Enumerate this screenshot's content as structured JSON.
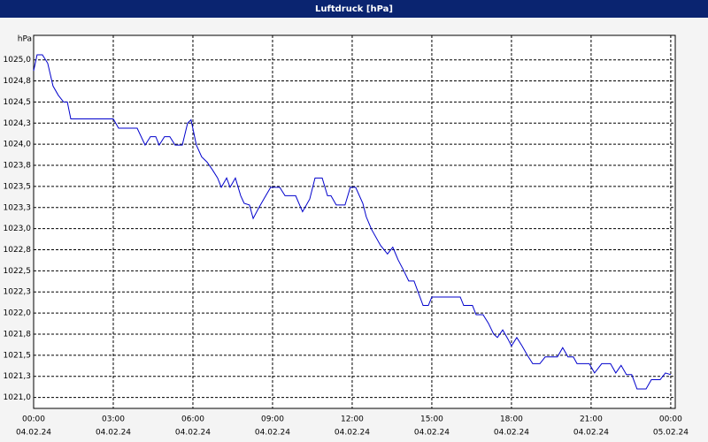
{
  "chart_data": {
    "type": "line",
    "title": "Luftdruck [hPa]",
    "ylabel": "hPa",
    "x": [
      0,
      0.13,
      0.33,
      0.53,
      0.73,
      0.93,
      1.13,
      1.27,
      1.4,
      1.73,
      3,
      3.2,
      3.9,
      4.2,
      4.4,
      4.6,
      4.73,
      4.93,
      5.13,
      5.33,
      5.6,
      5.8,
      5.93,
      6.13,
      6.33,
      6.53,
      6.73,
      6.93,
      7.07,
      7.27,
      7.4,
      7.6,
      7.8,
      7.93,
      8.13,
      8.27,
      8.47,
      8.67,
      8.93,
      9.27,
      9.47,
      9.87,
      10.13,
      10.4,
      10.6,
      10.87,
      11.07,
      11.2,
      11.4,
      11.73,
      11.93,
      12.13,
      12.4,
      12.53,
      12.73,
      13.07,
      13.33,
      13.53,
      13.73,
      13.93,
      14.13,
      14.33,
      14.47,
      14.67,
      14.87,
      15,
      16.07,
      16.2,
      16.53,
      16.67,
      16.93,
      17.13,
      17.33,
      17.47,
      17.67,
      17.87,
      18,
      18.2,
      18.4,
      18.6,
      18.8,
      19.07,
      19.27,
      19.73,
      19.93,
      20.13,
      20.33,
      20.47,
      20.93,
      21.13,
      21.4,
      21.73,
      21.93,
      22.13,
      22.33,
      22.53,
      22.73,
      23.07,
      23.27,
      23.6,
      23.8,
      24
    ],
    "values": [
      1024.87,
      1025.06,
      1025.06,
      1024.96,
      1024.69,
      1024.58,
      1024.5,
      1024.5,
      1024.3,
      1024.3,
      1024.3,
      1024.19,
      1024.19,
      1023.99,
      1024.09,
      1024.09,
      1023.99,
      1024.09,
      1024.09,
      1023.99,
      1023.99,
      1024.25,
      1024.29,
      1023.99,
      1023.85,
      1023.79,
      1023.7,
      1023.6,
      1023.49,
      1023.6,
      1023.49,
      1023.6,
      1023.39,
      1023.3,
      1023.28,
      1023.12,
      1023.24,
      1023.35,
      1023.49,
      1023.49,
      1023.39,
      1023.39,
      1023.2,
      1023.35,
      1023.6,
      1023.6,
      1023.39,
      1023.39,
      1023.28,
      1023.28,
      1023.49,
      1023.49,
      1023.3,
      1023.14,
      1022.99,
      1022.8,
      1022.7,
      1022.78,
      1022.63,
      1022.51,
      1022.38,
      1022.38,
      1022.26,
      1022.09,
      1022.09,
      1022.19,
      1022.19,
      1022.09,
      1022.09,
      1021.98,
      1021.98,
      1021.88,
      1021.75,
      1021.71,
      1021.8,
      1021.69,
      1021.61,
      1021.71,
      1021.61,
      1021.5,
      1021.4,
      1021.4,
      1021.48,
      1021.48,
      1021.59,
      1021.48,
      1021.48,
      1021.4,
      1021.4,
      1021.29,
      1021.4,
      1021.4,
      1021.29,
      1021.38,
      1021.27,
      1021.27,
      1021.1,
      1021.1,
      1021.21,
      1021.21,
      1021.29,
      1021.27
    ],
    "color": "#0000cc",
    "xlim": [
      0,
      24.17
    ],
    "xticks": [
      {
        "value": 0,
        "label": "00:00"
      },
      {
        "value": 3,
        "label": "03:00"
      },
      {
        "value": 6,
        "label": "06:00"
      },
      {
        "value": 9,
        "label": "09:00"
      },
      {
        "value": 12,
        "label": "12:00"
      },
      {
        "value": 15,
        "label": "15:00"
      },
      {
        "value": 18,
        "label": "18:00"
      },
      {
        "value": 21,
        "label": "21:00"
      },
      {
        "value": 24,
        "label": "00:00"
      }
    ],
    "xtick_dates": [
      "04.02.24",
      "04.02.24",
      "04.02.24",
      "04.02.24",
      "04.02.24",
      "04.02.24",
      "04.02.24",
      "04.02.24",
      "05.02.24"
    ],
    "ylim": [
      1020.87,
      1025.29
    ],
    "yticks": [
      {
        "value": 1021,
        "label": "1021,0"
      },
      {
        "value": 1021.25,
        "label": "1021,3"
      },
      {
        "value": 1021.5,
        "label": "1021,5"
      },
      {
        "value": 1021.75,
        "label": "1021,8"
      },
      {
        "value": 1022,
        "label": "1022,0"
      },
      {
        "value": 1022.25,
        "label": "1022,3"
      },
      {
        "value": 1022.5,
        "label": "1022,5"
      },
      {
        "value": 1022.75,
        "label": "1022,8"
      },
      {
        "value": 1023,
        "label": "1023,0"
      },
      {
        "value": 1023.25,
        "label": "1023,3"
      },
      {
        "value": 1023.5,
        "label": "1023,5"
      },
      {
        "value": 1023.75,
        "label": "1023,8"
      },
      {
        "value": 1024,
        "label": "1024,0"
      },
      {
        "value": 1024.25,
        "label": "1024,3"
      },
      {
        "value": 1024.5,
        "label": "1024,5"
      },
      {
        "value": 1024.75,
        "label": "1024,8"
      },
      {
        "value": 1025,
        "label": "1025,0"
      }
    ],
    "grid": true
  }
}
